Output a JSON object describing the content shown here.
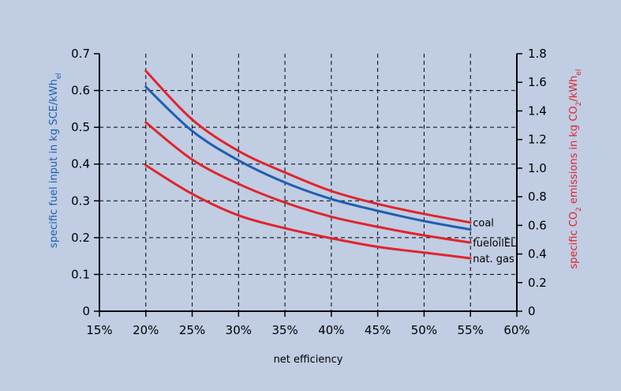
{
  "chart_data": {
    "type": "line",
    "xlabel": "net efficiency",
    "x_ticks": [
      "15%",
      "20%",
      "25%",
      "30%",
      "35%",
      "40%",
      "45%",
      "50%",
      "55%",
      "60%"
    ],
    "xlim": [
      15,
      60
    ],
    "left_axis": {
      "label_main": "specific  fuel input in kg SCE/kWh",
      "label_sub": "el",
      "ylim": [
        0,
        0.7
      ],
      "ticks": [
        "0",
        "0.1",
        "0.2",
        "0.3",
        "0.4",
        "0.5",
        "0.6",
        "0.7"
      ],
      "color": "#1f5fb0"
    },
    "right_axis": {
      "label_pre": "specific  CO",
      "label_sub1": "2",
      "label_mid": " emissions in kg CO",
      "label_sub2": "2",
      "label_post": "/kWh",
      "label_sub3": "el",
      "ylim": [
        0,
        1.8
      ],
      "ticks": [
        "0",
        "0.2",
        "0.4",
        "0.6",
        "0.8",
        "1.0",
        "1.2",
        "1.4",
        "1.6",
        "1.8"
      ],
      "color": "#e0242b"
    },
    "x": [
      20,
      25,
      30,
      35,
      40,
      45,
      50,
      55
    ],
    "series": [
      {
        "axis": "left",
        "color": "#1f5fb0",
        "values": [
          0.61,
          0.49,
          0.41,
          0.35,
          0.305,
          0.273,
          0.245,
          0.222
        ]
      },
      {
        "name": "coal",
        "axis": "right",
        "color": "#e0242b",
        "values": [
          1.68,
          1.34,
          1.12,
          0.97,
          0.84,
          0.75,
          0.68,
          0.62
        ]
      },
      {
        "name": "fueloilEL",
        "axis": "right",
        "color": "#e0242b",
        "values": [
          1.32,
          1.06,
          0.89,
          0.76,
          0.66,
          0.59,
          0.53,
          0.48
        ]
      },
      {
        "name": "nat. gas",
        "axis": "right",
        "color": "#e0242b",
        "values": [
          1.02,
          0.82,
          0.67,
          0.58,
          0.51,
          0.45,
          0.41,
          0.37
        ]
      }
    ],
    "grid": true
  }
}
